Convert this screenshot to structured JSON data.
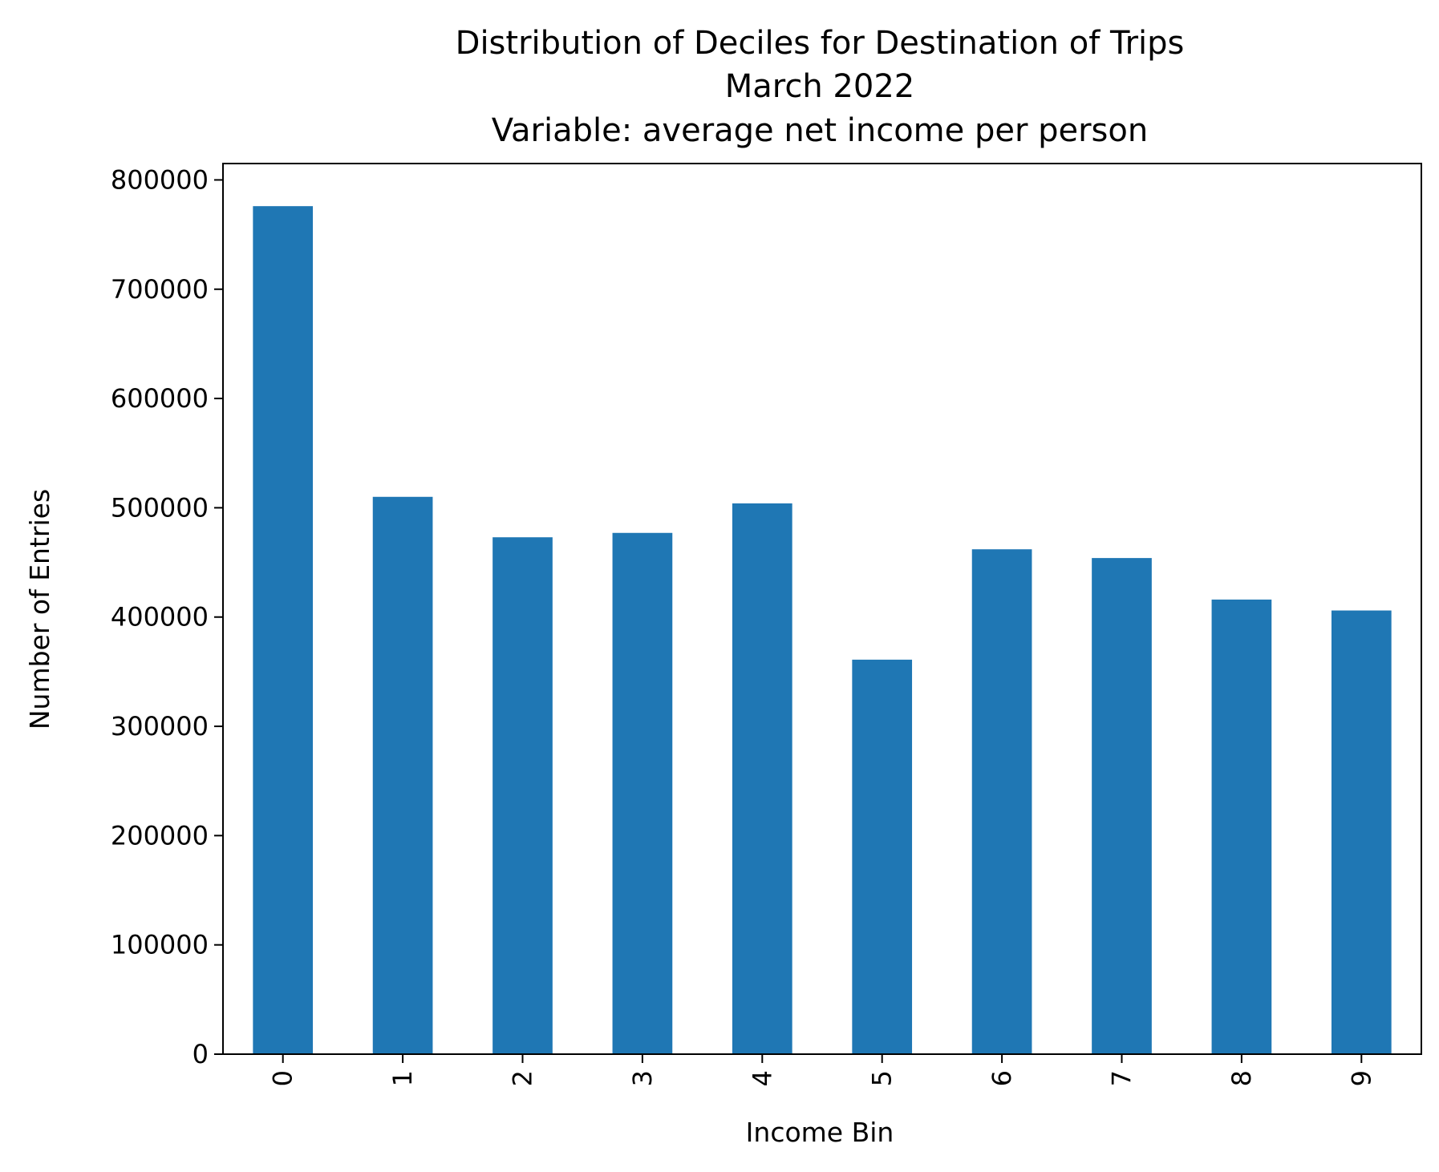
{
  "chart_data": {
    "type": "bar",
    "title_lines": [
      "Distribution of Deciles for Destination of Trips",
      "March 2022",
      "Variable: average net income per person"
    ],
    "xlabel": "Income Bin",
    "ylabel": "Number of Entries",
    "categories": [
      "0",
      "1",
      "2",
      "3",
      "4",
      "5",
      "6",
      "7",
      "8",
      "9"
    ],
    "values": [
      776000,
      510000,
      473000,
      477000,
      504000,
      361000,
      462000,
      454000,
      416000,
      406000
    ],
    "ylim": [
      0,
      815000
    ],
    "yticks": [
      0,
      100000,
      200000,
      300000,
      400000,
      500000,
      600000,
      700000,
      800000
    ],
    "ytick_labels": [
      "0",
      "100000",
      "200000",
      "300000",
      "400000",
      "500000",
      "600000",
      "700000",
      "800000"
    ],
    "bar_color": "#1f77b4",
    "grid": false,
    "legend": null
  }
}
